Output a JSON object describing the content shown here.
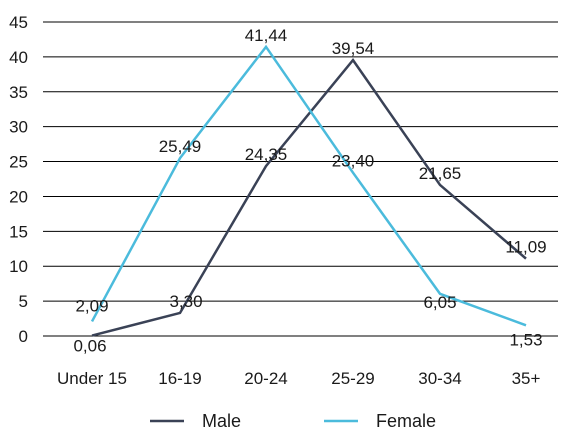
{
  "chart_data": {
    "type": "line",
    "categories": [
      "Under 15",
      "16-19",
      "20-24",
      "25-29",
      "30-34",
      "35+"
    ],
    "series": [
      {
        "name": "Male",
        "values": [
          0.06,
          3.3,
          24.35,
          39.54,
          21.65,
          11.09
        ],
        "labels": [
          "0,06",
          "3,30",
          "24,35",
          "39,54",
          "21,65",
          "11,09"
        ],
        "color": "#3a4256"
      },
      {
        "name": "Female",
        "values": [
          2.09,
          25.49,
          41.44,
          23.4,
          6.05,
          1.53
        ],
        "labels": [
          "2,09",
          "25,49",
          "41,44",
          "23,40",
          "6,05",
          "1,53"
        ],
        "color": "#4bbbdc"
      }
    ],
    "y_ticks": [
      "0",
      "5",
      "10",
      "15",
      "20",
      "25",
      "30",
      "35",
      "40",
      "45"
    ],
    "ylim": [
      0,
      45
    ],
    "grid": true,
    "legend_position": "bottom",
    "title": "",
    "xlabel": "",
    "ylabel": ""
  }
}
